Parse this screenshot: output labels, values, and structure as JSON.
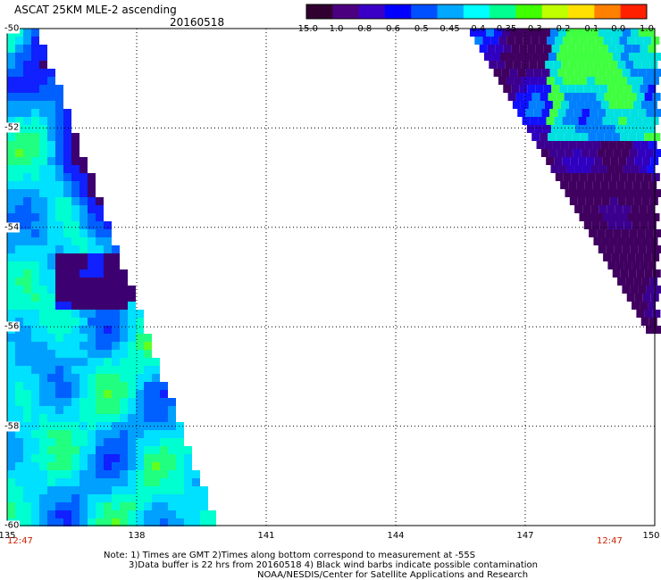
{
  "header": {
    "title": "ASCAT 25KM MLE-2 ascending",
    "date": "20160518"
  },
  "colorbar": {
    "labels": [
      "-15.0",
      "-1.0",
      "-0.8",
      "-0.6",
      "-0.5",
      "-0.45",
      "-0.4",
      "-0.35",
      "-0.3",
      "-0.2",
      "-0.1",
      "0.0",
      "1.0"
    ],
    "colors": [
      "#300030",
      "#4b0080",
      "#3a00c8",
      "#0000ff",
      "#0050ff",
      "#00a8ff",
      "#00ffff",
      "#00ff90",
      "#40ff00",
      "#c0ff00",
      "#ffe000",
      "#ff8000",
      "#ff2000"
    ]
  },
  "map": {
    "lon_ticks": [
      "135",
      "138",
      "141",
      "144",
      "147",
      "150"
    ],
    "lat_ticks": [
      "-50",
      "-52",
      "-54",
      "-56",
      "-58",
      "-60"
    ],
    "time_left": "12:47",
    "time_right": "12:47"
  },
  "notes": {
    "line1": "Note: 1) Times are GMT 2)Times along bottom correspond to measurement at -55S",
    "line2": "3)Data buffer is 22 hrs from 20160518 4) Black wind barbs indicate possible contamination",
    "line3": "NOAA/NESDIS/Center for Satellite Applications and Research"
  }
}
